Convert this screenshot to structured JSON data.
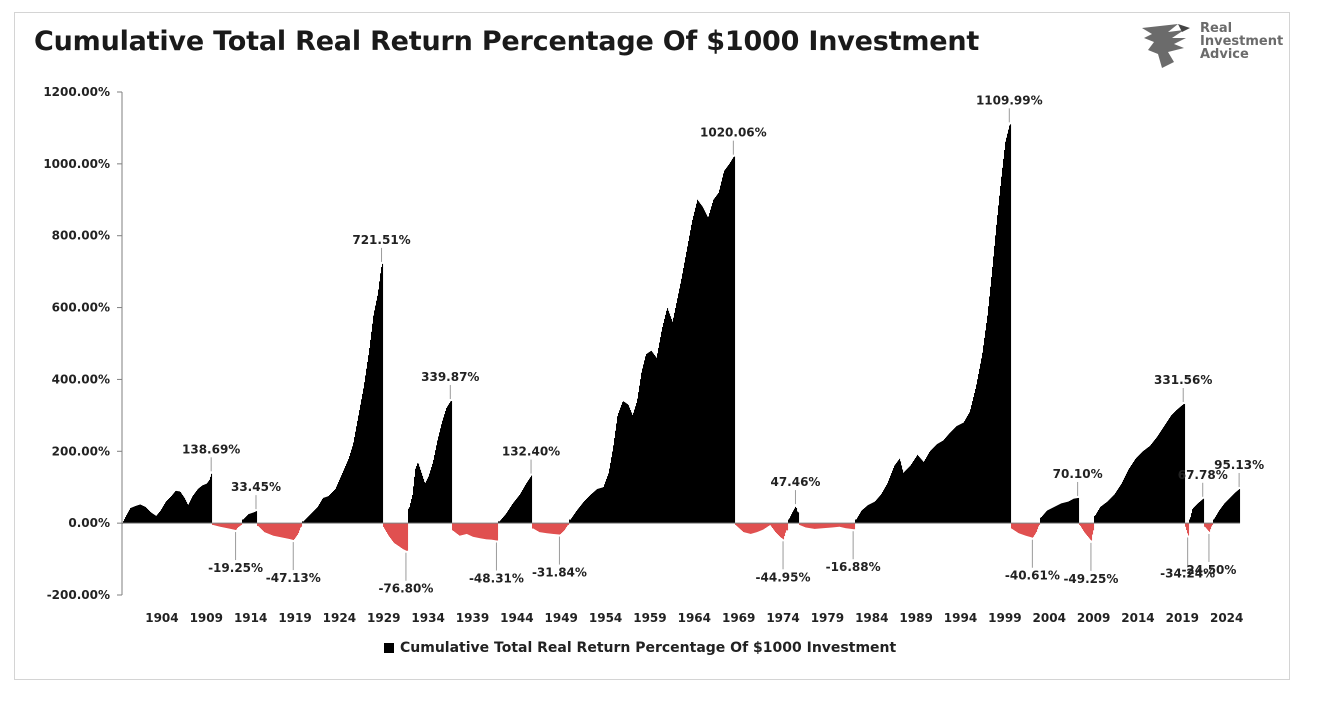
{
  "title": "Cumulative Total Real Return Percentage Of $1000 Investment",
  "logo": {
    "line1": "Real",
    "line2": "Investment",
    "line3": "Advice"
  },
  "legend": {
    "label": "Cumulative Total Real Return Percentage Of $1000 Investment"
  },
  "colors": {
    "positive": "#000000",
    "negative": "#e05050",
    "axis": "#7f7f7f",
    "text": "#222222"
  },
  "chart_data": {
    "type": "area",
    "title": "Cumulative Total Real Return Percentage Of $1000 Investment",
    "xlabel": "",
    "ylabel": "",
    "xlim": [
      1900,
      2026
    ],
    "ylim": [
      -200,
      1200
    ],
    "yticks": [
      -200,
      0,
      200,
      400,
      600,
      800,
      1000,
      1200
    ],
    "ytick_labels": [
      "-200.00%",
      "0.00%",
      "200.00%",
      "400.00%",
      "600.00%",
      "800.00%",
      "1000.00%",
      "1200.00%"
    ],
    "xticks": [
      1904,
      1909,
      1914,
      1919,
      1924,
      1929,
      1934,
      1939,
      1944,
      1949,
      1954,
      1959,
      1964,
      1969,
      1974,
      1979,
      1984,
      1989,
      1994,
      1999,
      2004,
      2009,
      2014,
      2019,
      2024
    ],
    "grid": false,
    "legend_position": "bottom",
    "series": [
      {
        "name": "Cumulative Total Real Return Percentage Of $1000 Investment",
        "points": [
          [
            1900.0,
            0
          ],
          [
            1900.4,
            20
          ],
          [
            1900.9,
            42
          ],
          [
            1901.5,
            48
          ],
          [
            1902.0,
            52
          ],
          [
            1902.6,
            45
          ],
          [
            1903.2,
            30
          ],
          [
            1903.8,
            20
          ],
          [
            1904.3,
            35
          ],
          [
            1904.9,
            60
          ],
          [
            1905.5,
            75
          ],
          [
            1906.0,
            90
          ],
          [
            1906.5,
            88
          ],
          [
            1907.0,
            70
          ],
          [
            1907.4,
            50
          ],
          [
            1907.9,
            75
          ],
          [
            1908.5,
            95
          ],
          [
            1909.0,
            105
          ],
          [
            1909.5,
            110
          ],
          [
            1909.8,
            120
          ],
          [
            1910.05,
            138.69
          ],
          [
            1910.2,
            -5
          ],
          [
            1911.0,
            -10
          ],
          [
            1912.0,
            -15
          ],
          [
            1912.8,
            -19.25
          ],
          [
            1913.0,
            -12
          ],
          [
            1913.4,
            -5
          ],
          [
            1913.6,
            10
          ],
          [
            1914.2,
            25
          ],
          [
            1914.8,
            30
          ],
          [
            1915.1,
            33.45
          ],
          [
            1915.3,
            -8
          ],
          [
            1916.0,
            -25
          ],
          [
            1917.0,
            -35
          ],
          [
            1918.0,
            -40
          ],
          [
            1918.8,
            -44
          ],
          [
            1919.3,
            -47.13
          ],
          [
            1919.8,
            -30
          ],
          [
            1920.1,
            -10
          ],
          [
            1920.4,
            5
          ],
          [
            1921.0,
            20
          ],
          [
            1922.0,
            45
          ],
          [
            1922.6,
            70
          ],
          [
            1923.2,
            75
          ],
          [
            1924.0,
            95
          ],
          [
            1924.8,
            140
          ],
          [
            1925.5,
            180
          ],
          [
            1926.0,
            220
          ],
          [
            1926.6,
            300
          ],
          [
            1927.2,
            380
          ],
          [
            1927.8,
            480
          ],
          [
            1928.3,
            580
          ],
          [
            1928.8,
            640
          ],
          [
            1929.1,
            700
          ],
          [
            1929.25,
            721.51
          ],
          [
            1929.4,
            -10
          ],
          [
            1930.0,
            -35
          ],
          [
            1930.6,
            -55
          ],
          [
            1931.2,
            -65
          ],
          [
            1931.6,
            -72
          ],
          [
            1932.0,
            -76.8
          ],
          [
            1932.3,
            40
          ],
          [
            1932.7,
            80
          ],
          [
            1933.0,
            150
          ],
          [
            1933.3,
            170
          ],
          [
            1933.7,
            140
          ],
          [
            1934.1,
            110
          ],
          [
            1934.5,
            130
          ],
          [
            1935.0,
            170
          ],
          [
            1935.5,
            230
          ],
          [
            1936.0,
            280
          ],
          [
            1936.5,
            320
          ],
          [
            1937.0,
            339.87
          ],
          [
            1937.2,
            -20
          ],
          [
            1938.0,
            -35
          ],
          [
            1938.8,
            -30
          ],
          [
            1939.5,
            -38
          ],
          [
            1940.3,
            -42
          ],
          [
            1941.0,
            -45
          ],
          [
            1941.6,
            -46
          ],
          [
            1942.2,
            -48.31
          ],
          [
            1942.5,
            5
          ],
          [
            1943.2,
            25
          ],
          [
            1944.0,
            55
          ],
          [
            1944.8,
            80
          ],
          [
            1945.5,
            110
          ],
          [
            1946.1,
            132.4
          ],
          [
            1946.3,
            -15
          ],
          [
            1947.0,
            -25
          ],
          [
            1947.8,
            -28
          ],
          [
            1948.5,
            -30
          ],
          [
            1949.3,
            -31.84
          ],
          [
            1949.8,
            -20
          ],
          [
            1950.2,
            -5
          ],
          [
            1950.5,
            10
          ],
          [
            1951.2,
            35
          ],
          [
            1952.0,
            60
          ],
          [
            1952.8,
            80
          ],
          [
            1953.5,
            95
          ],
          [
            1954.2,
            100
          ],
          [
            1954.8,
            140
          ],
          [
            1955.3,
            210
          ],
          [
            1955.8,
            300
          ],
          [
            1956.4,
            340
          ],
          [
            1957.0,
            330
          ],
          [
            1957.5,
            300
          ],
          [
            1958.0,
            340
          ],
          [
            1958.5,
            420
          ],
          [
            1959.0,
            470
          ],
          [
            1959.6,
            480
          ],
          [
            1960.2,
            460
          ],
          [
            1960.8,
            540
          ],
          [
            1961.4,
            600
          ],
          [
            1962.0,
            560
          ],
          [
            1962.5,
            620
          ],
          [
            1963.0,
            680
          ],
          [
            1963.6,
            760
          ],
          [
            1964.2,
            840
          ],
          [
            1964.8,
            900
          ],
          [
            1965.4,
            880
          ],
          [
            1966.0,
            850
          ],
          [
            1966.6,
            900
          ],
          [
            1967.2,
            920
          ],
          [
            1967.8,
            980
          ],
          [
            1968.4,
            1000
          ],
          [
            1968.9,
            1020.06
          ],
          [
            1969.1,
            -5
          ],
          [
            1970.0,
            -25
          ],
          [
            1970.8,
            -30
          ],
          [
            1971.5,
            -25
          ],
          [
            1972.2,
            -18
          ],
          [
            1973.0,
            -5
          ],
          [
            1973.6,
            -25
          ],
          [
            1974.2,
            -40
          ],
          [
            1974.5,
            -44.95
          ],
          [
            1974.8,
            -20
          ],
          [
            1975.1,
            10
          ],
          [
            1975.5,
            30
          ],
          [
            1975.9,
            47.46
          ],
          [
            1976.1,
            30
          ],
          [
            1976.3,
            -5
          ],
          [
            1977.0,
            -12
          ],
          [
            1978.0,
            -16
          ],
          [
            1979.0,
            -14
          ],
          [
            1980.0,
            -12
          ],
          [
            1980.8,
            -10
          ],
          [
            1981.5,
            -14
          ],
          [
            1982.4,
            -16.88
          ],
          [
            1982.7,
            10
          ],
          [
            1983.3,
            35
          ],
          [
            1984.0,
            50
          ],
          [
            1984.8,
            60
          ],
          [
            1985.5,
            80
          ],
          [
            1986.2,
            110
          ],
          [
            1987.0,
            160
          ],
          [
            1987.6,
            180
          ],
          [
            1988.0,
            140
          ],
          [
            1988.8,
            160
          ],
          [
            1989.6,
            190
          ],
          [
            1990.3,
            170
          ],
          [
            1991.0,
            200
          ],
          [
            1991.8,
            220
          ],
          [
            1992.5,
            230
          ],
          [
            1993.2,
            250
          ],
          [
            1994.0,
            270
          ],
          [
            1994.8,
            280
          ],
          [
            1995.5,
            310
          ],
          [
            1996.2,
            380
          ],
          [
            1996.9,
            470
          ],
          [
            1997.5,
            580
          ],
          [
            1998.0,
            700
          ],
          [
            1998.5,
            830
          ],
          [
            1999.0,
            950
          ],
          [
            1999.5,
            1060
          ],
          [
            2000.0,
            1109.99
          ],
          [
            2000.2,
            -15
          ],
          [
            2001.0,
            -28
          ],
          [
            2001.8,
            -35
          ],
          [
            2002.6,
            -40.61
          ],
          [
            2003.0,
            -25
          ],
          [
            2003.3,
            -5
          ],
          [
            2003.5,
            15
          ],
          [
            2004.2,
            35
          ],
          [
            2005.0,
            45
          ],
          [
            2005.8,
            55
          ],
          [
            2006.6,
            60
          ],
          [
            2007.2,
            68
          ],
          [
            2007.7,
            70.1
          ],
          [
            2007.9,
            -5
          ],
          [
            2008.4,
            -25
          ],
          [
            2008.9,
            -40
          ],
          [
            2009.2,
            -49.25
          ],
          [
            2009.4,
            -20
          ],
          [
            2009.6,
            20
          ],
          [
            2010.2,
            45
          ],
          [
            2011.0,
            60
          ],
          [
            2011.8,
            80
          ],
          [
            2012.6,
            110
          ],
          [
            2013.4,
            150
          ],
          [
            2014.2,
            180
          ],
          [
            2015.0,
            200
          ],
          [
            2015.8,
            215
          ],
          [
            2016.6,
            240
          ],
          [
            2017.4,
            270
          ],
          [
            2018.2,
            300
          ],
          [
            2018.8,
            315
          ],
          [
            2019.6,
            331.56
          ],
          [
            2019.8,
            -10
          ],
          [
            2020.1,
            -34.24
          ],
          [
            2020.3,
            10
          ],
          [
            2020.6,
            40
          ],
          [
            2021.2,
            55
          ],
          [
            2021.8,
            67.78
          ],
          [
            2022.0,
            -10
          ],
          [
            2022.5,
            -24.5
          ],
          [
            2022.8,
            -5
          ],
          [
            2023.0,
            10
          ],
          [
            2023.6,
            35
          ],
          [
            2024.2,
            55
          ],
          [
            2024.8,
            70
          ],
          [
            2025.4,
            85
          ],
          [
            2025.9,
            95.13
          ]
        ]
      }
    ],
    "annotations": [
      {
        "text": "138.69%",
        "x": 1910.05,
        "y": 138.69,
        "pos": "above"
      },
      {
        "text": "33.45%",
        "x": 1915.1,
        "y": 33.45,
        "pos": "above"
      },
      {
        "text": "721.51%",
        "x": 1929.25,
        "y": 721.51,
        "pos": "above"
      },
      {
        "text": "339.87%",
        "x": 1937.0,
        "y": 339.87,
        "pos": "above"
      },
      {
        "text": "132.40%",
        "x": 1946.1,
        "y": 132.4,
        "pos": "above"
      },
      {
        "text": "1020.06%",
        "x": 1968.9,
        "y": 1020.06,
        "pos": "above"
      },
      {
        "text": "47.46%",
        "x": 1975.9,
        "y": 47.46,
        "pos": "above"
      },
      {
        "text": "1109.99%",
        "x": 2000.0,
        "y": 1109.99,
        "pos": "above"
      },
      {
        "text": "70.10%",
        "x": 2007.7,
        "y": 70.1,
        "pos": "above"
      },
      {
        "text": "331.56%",
        "x": 2019.6,
        "y": 331.56,
        "pos": "above"
      },
      {
        "text": "67.78%",
        "x": 2021.8,
        "y": 67.78,
        "pos": "above"
      },
      {
        "text": "95.13%",
        "x": 2025.9,
        "y": 95.13,
        "pos": "above"
      },
      {
        "text": "-19.25%",
        "x": 1912.8,
        "y": -19.25,
        "pos": "below"
      },
      {
        "text": "-47.13%",
        "x": 1919.3,
        "y": -47.13,
        "pos": "below"
      },
      {
        "text": "-76.80%",
        "x": 1932.0,
        "y": -76.8,
        "pos": "below"
      },
      {
        "text": "-48.31%",
        "x": 1942.2,
        "y": -48.31,
        "pos": "below"
      },
      {
        "text": "-31.84%",
        "x": 1949.3,
        "y": -31.84,
        "pos": "below"
      },
      {
        "text": "-44.95%",
        "x": 1974.5,
        "y": -44.95,
        "pos": "below"
      },
      {
        "text": "-16.88%",
        "x": 1982.4,
        "y": -16.88,
        "pos": "below"
      },
      {
        "text": "-40.61%",
        "x": 2002.6,
        "y": -40.61,
        "pos": "below"
      },
      {
        "text": "-49.25%",
        "x": 2009.2,
        "y": -49.25,
        "pos": "below"
      },
      {
        "text": "-34.24%",
        "x": 2020.1,
        "y": -34.24,
        "pos": "below"
      },
      {
        "text": "-24.50%",
        "x": 2022.5,
        "y": -24.5,
        "pos": "below"
      }
    ]
  }
}
